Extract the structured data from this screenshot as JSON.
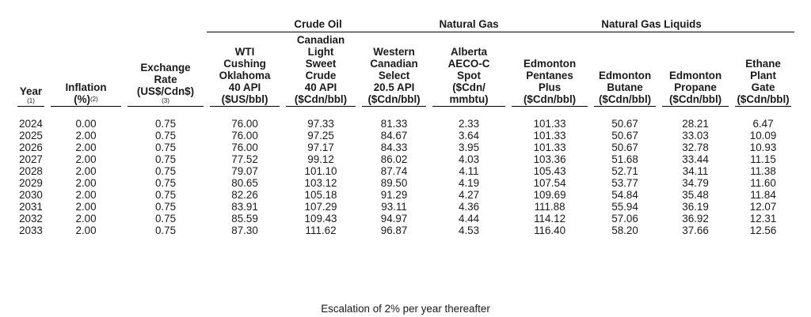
{
  "groups": {
    "crude": "Crude Oil",
    "gas": "Natural Gas",
    "ngl": "Natural Gas Liquids"
  },
  "headers": {
    "year": [
      "Year"
    ],
    "year_note": "(1)",
    "inflation": [
      "Inflation",
      "(%)"
    ],
    "inflation_note": "(2)",
    "exchange": [
      "Exchange",
      "Rate",
      "(US$/Cdn$)"
    ],
    "exchange_note": "(3)",
    "wti": [
      "WTI",
      "Cushing",
      "Oklahoma",
      "40 API",
      "($US/bbl)"
    ],
    "cls": [
      "Canadian",
      "Light",
      "Sweet",
      "Crude",
      "40 API",
      "($Cdn/bbl)"
    ],
    "wcs": [
      "Western",
      "Canadian",
      "Select",
      "20.5 API",
      "($Cdn/bbl)"
    ],
    "aeco": [
      "Alberta",
      "AECO-C",
      "Spot",
      "($Cdn/",
      "mmbtu)"
    ],
    "pentanes": [
      "Edmonton",
      "Pentanes",
      "Plus",
      "($Cdn/bbl)"
    ],
    "butane": [
      "Edmonton",
      "Butane",
      "($Cdn/bbl)"
    ],
    "propane": [
      "Edmonton",
      "Propane",
      "($Cdn/bbl)"
    ],
    "ethane": [
      "Ethane",
      "Plant",
      "Gate",
      "($Cdn/bbl)"
    ]
  },
  "rows": [
    [
      "2024",
      "0.00",
      "0.75",
      "76.00",
      "97.33",
      "81.33",
      "2.33",
      "101.33",
      "50.67",
      "28.21",
      "6.47"
    ],
    [
      "2025",
      "2.00",
      "0.75",
      "76.00",
      "97.25",
      "84.67",
      "3.64",
      "101.33",
      "50.67",
      "33.03",
      "10.09"
    ],
    [
      "2026",
      "2.00",
      "0.75",
      "76.00",
      "97.17",
      "84.33",
      "3.95",
      "101.33",
      "50.67",
      "32.78",
      "10.93"
    ],
    [
      "2027",
      "2.00",
      "0.75",
      "77.52",
      "99.12",
      "86.02",
      "4.03",
      "103.36",
      "51.68",
      "33.44",
      "11.15"
    ],
    [
      "2028",
      "2.00",
      "0.75",
      "79.07",
      "101.10",
      "87.74",
      "4.11",
      "105.43",
      "52.71",
      "34.11",
      "11.38"
    ],
    [
      "2029",
      "2.00",
      "0.75",
      "80.65",
      "103.12",
      "89.50",
      "4.19",
      "107.54",
      "53.77",
      "34.79",
      "11.60"
    ],
    [
      "2030",
      "2.00",
      "0.75",
      "82.26",
      "105.18",
      "91.29",
      "4.27",
      "109.69",
      "54.84",
      "35.48",
      "11.84"
    ],
    [
      "2031",
      "2.00",
      "0.75",
      "83.91",
      "107.29",
      "93.11",
      "4.36",
      "111.88",
      "55.94",
      "36.19",
      "12.07"
    ],
    [
      "2032",
      "2.00",
      "0.75",
      "85.59",
      "109.43",
      "94.97",
      "4.44",
      "114.12",
      "57.06",
      "36.92",
      "12.31"
    ],
    [
      "2033",
      "2.00",
      "0.75",
      "87.30",
      "111.62",
      "96.87",
      "4.53",
      "116.40",
      "58.20",
      "37.66",
      "12.56"
    ]
  ],
  "footnote": "Escalation of 2% per year thereafter"
}
